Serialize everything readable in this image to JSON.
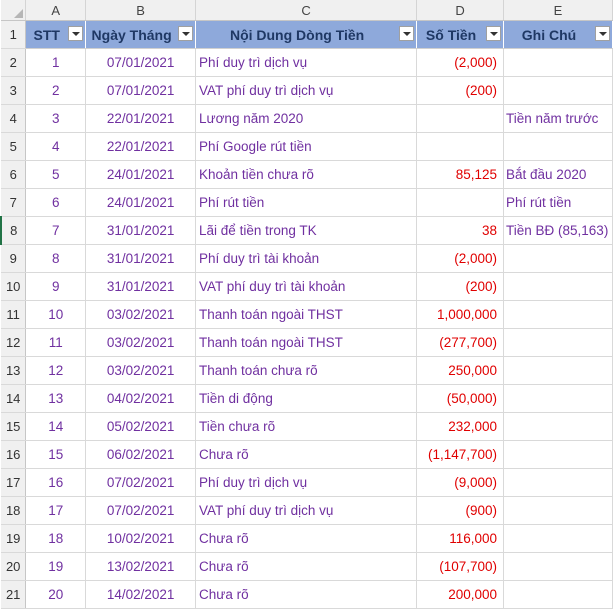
{
  "column_letters": [
    "A",
    "B",
    "C",
    "D",
    "E"
  ],
  "headers": {
    "stt": "STT",
    "date": "Ngày Tháng",
    "content": "Nội Dung Dòng Tiền",
    "amount": "Số Tiền",
    "note": "Ghi Chú"
  },
  "rows": [
    {
      "num": "2",
      "stt": "1",
      "date": "07/01/2021",
      "content": "Phí duy trì dịch vụ",
      "amount": "(2,000)",
      "note": ""
    },
    {
      "num": "3",
      "stt": "2",
      "date": "07/01/2021",
      "content": "VAT phí duy trì dịch vụ",
      "amount": "(200)",
      "note": ""
    },
    {
      "num": "4",
      "stt": "3",
      "date": "22/01/2021",
      "content": "Lương năm 2020",
      "amount": "",
      "note": "Tiền năm trước"
    },
    {
      "num": "5",
      "stt": "4",
      "date": "22/01/2021",
      "content": "Phí Google rút tiền",
      "amount": "",
      "note": ""
    },
    {
      "num": "6",
      "stt": "5",
      "date": "24/01/2021",
      "content": "Khoản tiền chưa rõ",
      "amount": "85,125",
      "note": "Bắt đầu 2020"
    },
    {
      "num": "7",
      "stt": "6",
      "date": "24/01/2021",
      "content": "Phí rút tiền",
      "amount": "",
      "note": "Phí rút tiền"
    },
    {
      "num": "8",
      "stt": "7",
      "date": "31/01/2021",
      "content": "Lãi để tiền trong TK",
      "amount": "38",
      "note": "Tiền BĐ (85,163)"
    },
    {
      "num": "9",
      "stt": "8",
      "date": "31/01/2021",
      "content": "Phí duy trì tài khoản",
      "amount": "(2,000)",
      "note": ""
    },
    {
      "num": "10",
      "stt": "9",
      "date": "31/01/2021",
      "content": "VAT phí duy trì tài khoản",
      "amount": "(200)",
      "note": ""
    },
    {
      "num": "11",
      "stt": "10",
      "date": "03/02/2021",
      "content": "Thanh toán ngoài THST",
      "amount": "1,000,000",
      "note": ""
    },
    {
      "num": "12",
      "stt": "11",
      "date": "03/02/2021",
      "content": "Thanh toán ngoài THST",
      "amount": "(277,700)",
      "note": ""
    },
    {
      "num": "13",
      "stt": "12",
      "date": "03/02/2021",
      "content": "Thanh toán chưa rõ",
      "amount": "250,000",
      "note": ""
    },
    {
      "num": "14",
      "stt": "13",
      "date": "04/02/2021",
      "content": "Tiền di động",
      "amount": "(50,000)",
      "note": ""
    },
    {
      "num": "15",
      "stt": "14",
      "date": "05/02/2021",
      "content": "Tiền chưa rõ",
      "amount": "232,000",
      "note": ""
    },
    {
      "num": "16",
      "stt": "15",
      "date": "06/02/2021",
      "content": "Chưa rõ",
      "amount": "(1,147,700)",
      "note": ""
    },
    {
      "num": "17",
      "stt": "16",
      "date": "07/02/2021",
      "content": "Phí duy trì dịch vụ",
      "amount": "(9,000)",
      "note": ""
    },
    {
      "num": "18",
      "stt": "17",
      "date": "07/02/2021",
      "content": "VAT phí duy trì dịch vụ",
      "amount": "(900)",
      "note": ""
    },
    {
      "num": "19",
      "stt": "18",
      "date": "10/02/2021",
      "content": "Chưa rõ",
      "amount": "116,000",
      "note": ""
    },
    {
      "num": "20",
      "stt": "19",
      "date": "13/02/2021",
      "content": "Chưa rõ",
      "amount": "(107,700)",
      "note": ""
    },
    {
      "num": "21",
      "stt": "20",
      "date": "14/02/2021",
      "content": "Chưa rõ",
      "amount": "200,000",
      "note": ""
    }
  ],
  "header_row_num": "1",
  "colors": {
    "header_fill": "#8ea9db",
    "header_text": "#1f3864",
    "row_text": "#7030a0",
    "amount_text": "#e00000",
    "band_fill": "#eef2f9"
  }
}
